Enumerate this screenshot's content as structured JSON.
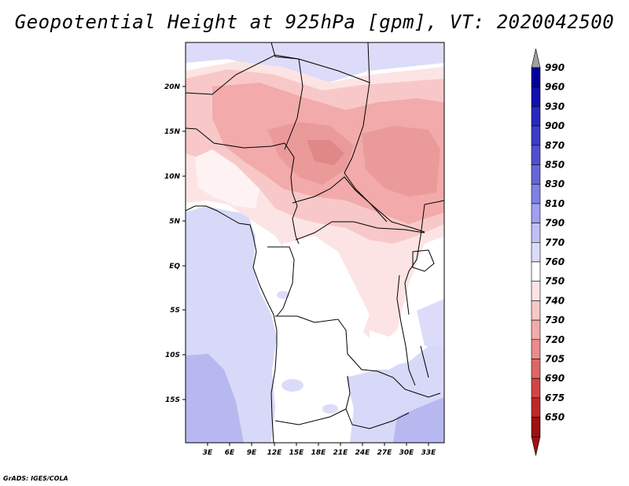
{
  "title": "Geopotential Height at 925hPa [gpm], VT: 2020042500",
  "credit": "GrADS: IGES/COLA",
  "map": {
    "region": "Central Africa",
    "lat_labels": [
      "20N",
      "15N",
      "10N",
      "5N",
      "EQ",
      "5S",
      "10S",
      "15S"
    ],
    "lon_labels": [
      "3E",
      "6E",
      "9E",
      "12E",
      "15E",
      "18E",
      "21E",
      "24E",
      "27E",
      "30E",
      "33E"
    ]
  },
  "colorbar": {
    "levels": [
      "990",
      "960",
      "930",
      "900",
      "870",
      "850",
      "830",
      "810",
      "790",
      "770",
      "760",
      "750",
      "740",
      "730",
      "720",
      "705",
      "690",
      "675",
      "650"
    ],
    "colors": [
      "#0000a0",
      "#1010b0",
      "#2828c0",
      "#3c3cc8",
      "#5050d0",
      "#6666dc",
      "#8080e6",
      "#a0a0f0",
      "#c0c0f6",
      "#dcdcfa",
      "#ffffff",
      "#fde4e4",
      "#f8c8c8",
      "#f2aaaa",
      "#eb8c8c",
      "#e06666",
      "#d44444",
      "#c02828",
      "#a01010"
    ],
    "top_arrow_color": "#a0a0a0",
    "bottom_arrow_color": "#a01010"
  }
}
